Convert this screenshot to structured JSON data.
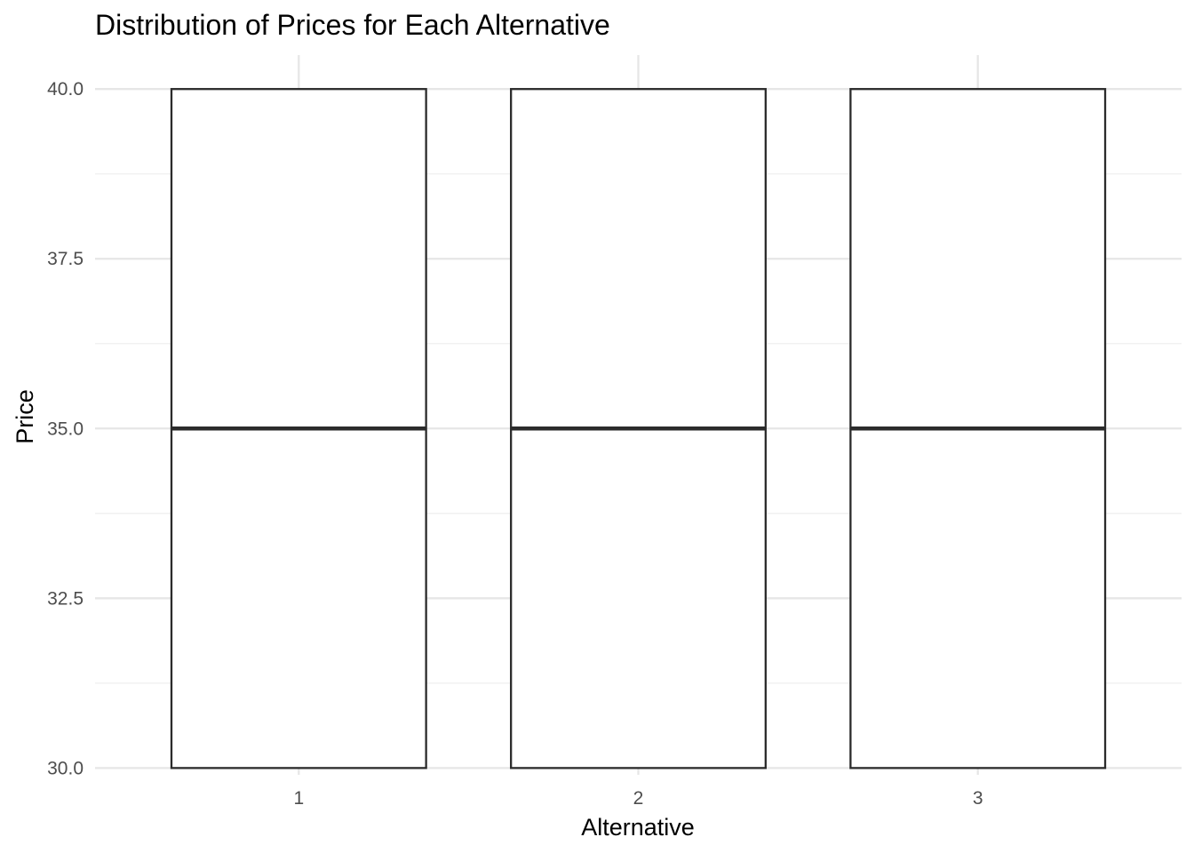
{
  "chart_data": {
    "type": "boxplot",
    "title": "Distribution of Prices for Each Alternative",
    "xlabel": "Alternative",
    "ylabel": "Price",
    "categories": [
      "1",
      "2",
      "3"
    ],
    "boxes": [
      {
        "category": "1",
        "min": 30.0,
        "q1": 30.0,
        "median": 35.0,
        "q3": 40.0,
        "max": 40.0
      },
      {
        "category": "2",
        "min": 30.0,
        "q1": 30.0,
        "median": 35.0,
        "q3": 40.0,
        "max": 40.0
      },
      {
        "category": "3",
        "min": 30.0,
        "q1": 30.0,
        "median": 35.0,
        "q3": 40.0,
        "max": 40.0
      }
    ],
    "ylim": [
      29.9,
      40.5
    ],
    "yticks": [
      30.0,
      32.5,
      35.0,
      37.5,
      40.0
    ],
    "ytick_labels": [
      "30.0",
      "32.5",
      "35.0",
      "37.5",
      "40.0"
    ],
    "yminor": [
      31.25,
      33.75,
      36.25,
      38.75
    ],
    "grid": true,
    "legend": "none",
    "colors": {
      "box_fill": "#ffffff",
      "box_outline": "#2b2b2b",
      "grid_major": "#e6e6e6",
      "grid_minor": "#efefef",
      "tick_text": "#4d4d4d",
      "title_text": "#000000"
    }
  }
}
